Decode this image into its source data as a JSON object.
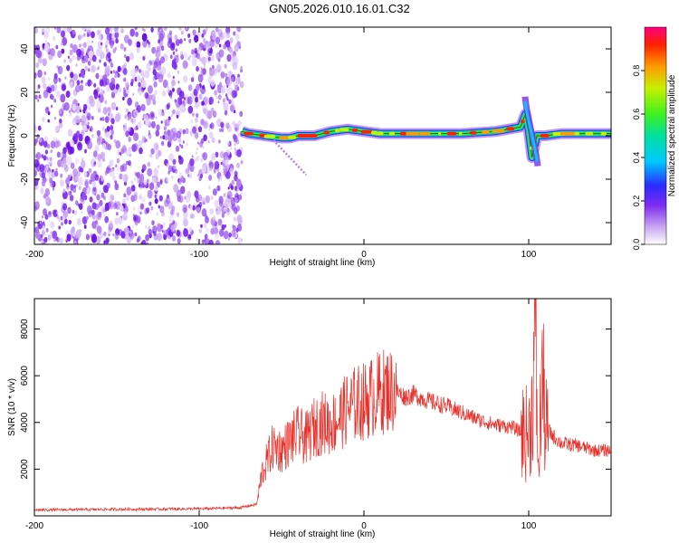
{
  "page": {
    "title": "GN05.2026.010.16.01.C32"
  },
  "chart_data": [
    {
      "type": "heatmap",
      "name": "spectrogram",
      "xlabel": "Height of straight line (km)",
      "ylabel": "Frequency (Hz)",
      "xlim": [
        -200,
        150
      ],
      "ylim": [
        -50,
        50
      ],
      "xticks": [
        -200,
        -100,
        0,
        100
      ],
      "yticks": [
        -40,
        -20,
        0,
        20,
        40
      ],
      "colorbar": {
        "label": "Normalized spectral amplitude",
        "range": [
          0.0,
          1.0
        ],
        "ticks": [
          "0.0",
          "0.2",
          "0.4",
          "0.6",
          "0.8"
        ]
      },
      "noise_region": {
        "x_start": -200,
        "x_end": -74
      },
      "signal_ridge": {
        "x": [
          -74,
          -70,
          -60,
          -50,
          -45,
          -40,
          -30,
          -20,
          -10,
          0,
          10,
          20,
          40,
          60,
          80,
          95,
          98,
          100,
          102,
          105,
          110,
          120,
          150
        ],
        "freq": [
          2,
          1,
          0,
          -1,
          -1,
          0,
          0,
          2,
          3,
          2,
          1,
          1,
          1,
          1,
          2,
          4,
          10,
          2,
          -10,
          0,
          0,
          1,
          1
        ],
        "amplitude": [
          0.4,
          0.7,
          0.6,
          0.7,
          0.8,
          0.6,
          0.7,
          0.9,
          0.9,
          0.9,
          0.9,
          0.95,
          0.8,
          0.9,
          0.85,
          0.9,
          0.5,
          0.9,
          0.5,
          0.8,
          0.9,
          0.9,
          0.8
        ]
      }
    },
    {
      "type": "line",
      "name": "snr",
      "xlabel": "Height of straight line (km)",
      "ylabel": "SNR (10 * v/v)",
      "xlim": [
        -200,
        150
      ],
      "ylim": [
        0,
        9300
      ],
      "xticks": [
        -200,
        -100,
        0,
        100
      ],
      "yticks": [
        2000,
        4000,
        6000,
        8000
      ],
      "color": "#e8302a",
      "series": [
        {
          "name": "SNR",
          "x": [
            -200,
            -150,
            -100,
            -75,
            -65,
            -62,
            -58,
            -55,
            -50,
            -45,
            -40,
            -35,
            -30,
            -25,
            -20,
            -15,
            -10,
            -5,
            0,
            5,
            10,
            15,
            20,
            25,
            30,
            40,
            50,
            60,
            70,
            80,
            90,
            95,
            100,
            102,
            104,
            106,
            108,
            110,
            115,
            120,
            130,
            140,
            150
          ],
          "y": [
            250,
            280,
            300,
            350,
            500,
            1800,
            2500,
            3000,
            2800,
            3200,
            3500,
            3300,
            3800,
            4000,
            3900,
            4200,
            4600,
            4800,
            4900,
            5100,
            5300,
            5400,
            5300,
            5100,
            5200,
            4900,
            4700,
            4400,
            4100,
            3900,
            3800,
            3600,
            3500,
            4500,
            8000,
            1500,
            6500,
            3800,
            3400,
            3100,
            3000,
            2800,
            2800
          ]
        }
      ]
    }
  ]
}
